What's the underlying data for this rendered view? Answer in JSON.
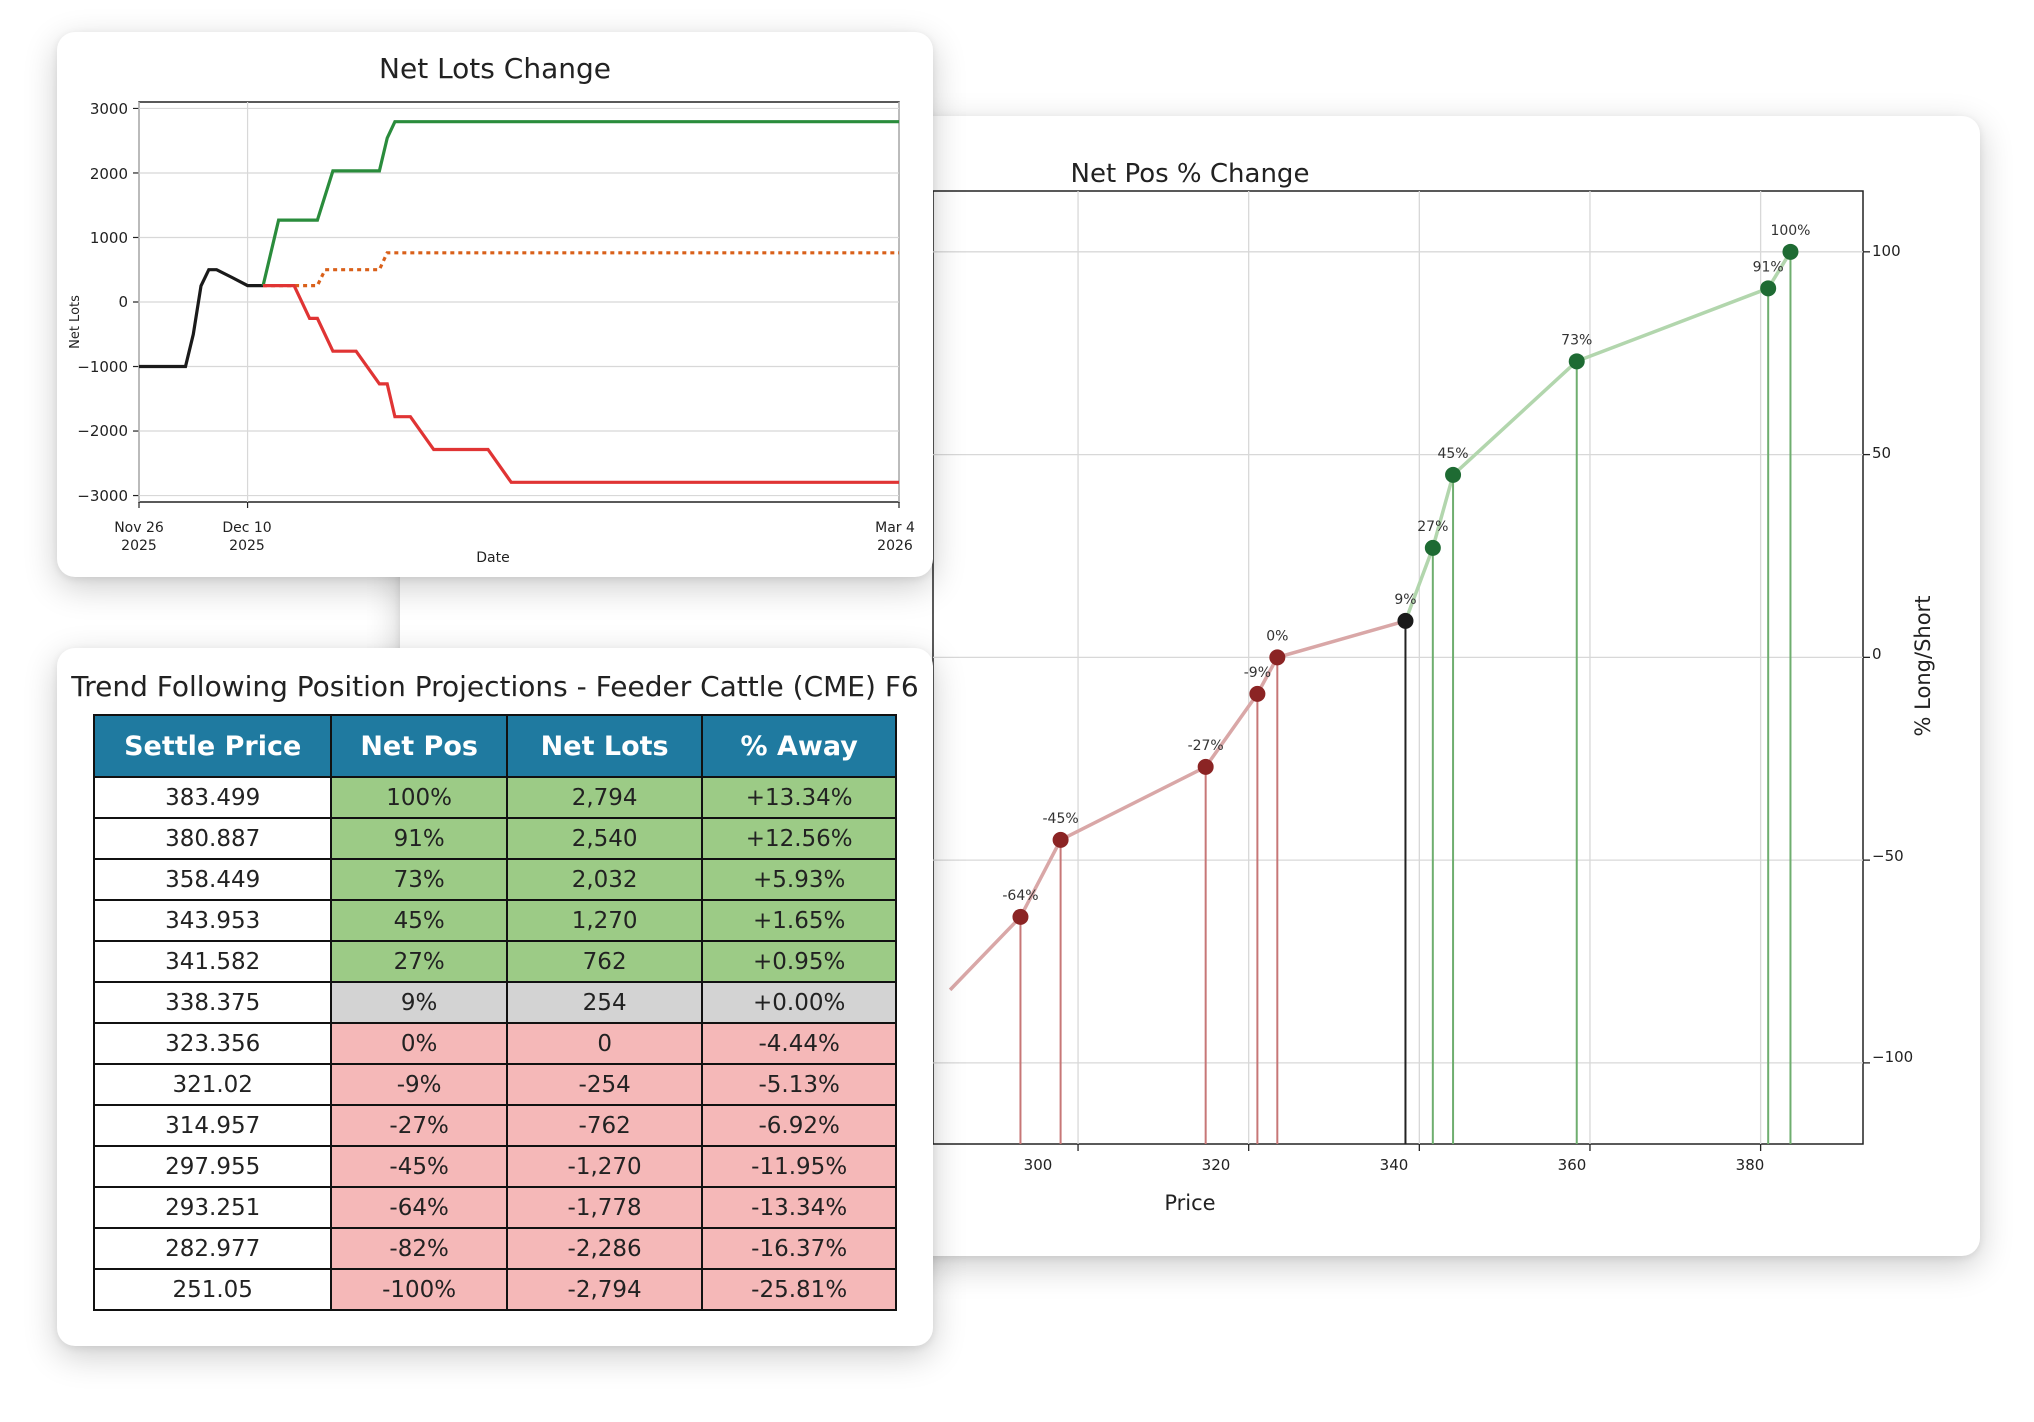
{
  "netpos_chart": {
    "title": "Net Pos % Change",
    "xlabel": "Price",
    "ylabel": "% Long/Short",
    "x_ticks": [
      "300",
      "320",
      "340",
      "360",
      "380"
    ],
    "y_ticks": [
      "100",
      "50",
      "0",
      "−50",
      "−100"
    ]
  },
  "netlots_chart": {
    "title": "Net Lots Change",
    "xlabel": "Date",
    "ylabel": "Net Lots",
    "x_ticks": [
      {
        "line1": "Nov 26",
        "line2": "2025"
      },
      {
        "line1": "Dec 10",
        "line2": "2025"
      },
      {
        "line1": "Mar 4",
        "line2": "2026"
      }
    ],
    "y_ticks": [
      "3000",
      "2000",
      "1000",
      "0",
      "−1000",
      "−2000",
      "−3000"
    ]
  },
  "table": {
    "title": "Trend Following Position Projections - Feeder Cattle (CME) F6",
    "headers": [
      "Settle Price",
      "Net Pos",
      "Net Lots",
      "% Away"
    ],
    "rows": [
      {
        "price": "383.499",
        "pos": "100%",
        "lots": "2,794",
        "away": "+13.34%",
        "tone": "pos"
      },
      {
        "price": "380.887",
        "pos": "91%",
        "lots": "2,540",
        "away": "+12.56%",
        "tone": "pos"
      },
      {
        "price": "358.449",
        "pos": "73%",
        "lots": "2,032",
        "away": "+5.93%",
        "tone": "pos"
      },
      {
        "price": "343.953",
        "pos": "45%",
        "lots": "1,270",
        "away": "+1.65%",
        "tone": "pos"
      },
      {
        "price": "341.582",
        "pos": "27%",
        "lots": "762",
        "away": "+0.95%",
        "tone": "pos"
      },
      {
        "price": "338.375",
        "pos": "9%",
        "lots": "254",
        "away": "+0.00%",
        "tone": "neu"
      },
      {
        "price": "323.356",
        "pos": "0%",
        "lots": "0",
        "away": "-4.44%",
        "tone": "neg"
      },
      {
        "price": "321.02",
        "pos": "-9%",
        "lots": "-254",
        "away": "-5.13%",
        "tone": "neg"
      },
      {
        "price": "314.957",
        "pos": "-27%",
        "lots": "-762",
        "away": "-6.92%",
        "tone": "neg"
      },
      {
        "price": "297.955",
        "pos": "-45%",
        "lots": "-1,270",
        "away": "-11.95%",
        "tone": "neg"
      },
      {
        "price": "293.251",
        "pos": "-64%",
        "lots": "-1,778",
        "away": "-13.34%",
        "tone": "neg"
      },
      {
        "price": "282.977",
        "pos": "-82%",
        "lots": "-2,286",
        "away": "-16.37%",
        "tone": "neg"
      },
      {
        "price": "251.05",
        "pos": "-100%",
        "lots": "-2,794",
        "away": "-25.81%",
        "tone": "neg"
      }
    ]
  },
  "colors": {
    "long": "#1e6b33",
    "short": "#8b2424",
    "current": "#1a1a1a",
    "up_line": "#2a8c3c",
    "down_line": "#e03434",
    "flat_line": "#d9601a",
    "header": "#1f7aa0"
  },
  "chart_data": [
    {
      "type": "line",
      "title": "Net Pos % Change",
      "xlabel": "Price",
      "ylabel": "% Long/Short",
      "xlim": [
        283,
        392
      ],
      "ylim": [
        -120,
        115
      ],
      "grid": true,
      "points": [
        {
          "x": 297.955,
          "y": -45,
          "label": "-45%",
          "side": "short"
        },
        {
          "x": 293.251,
          "y": -64,
          "label": "-64%",
          "side": "short"
        },
        {
          "x": 314.957,
          "y": -27,
          "label": "-27%",
          "side": "short"
        },
        {
          "x": 321.02,
          "y": -9,
          "label": "-9%",
          "side": "short"
        },
        {
          "x": 323.356,
          "y": 0,
          "label": "0%",
          "side": "short"
        },
        {
          "x": 338.375,
          "y": 9,
          "label": "9%",
          "side": "current"
        },
        {
          "x": 341.582,
          "y": 27,
          "label": "27%",
          "side": "long"
        },
        {
          "x": 343.953,
          "y": 45,
          "label": "45%",
          "side": "long"
        },
        {
          "x": 358.449,
          "y": 73,
          "label": "73%",
          "side": "long"
        },
        {
          "x": 380.887,
          "y": 91,
          "label": "91%",
          "side": "long"
        },
        {
          "x": 383.499,
          "y": 100,
          "label": "100%",
          "side": "long"
        }
      ]
    },
    {
      "type": "line",
      "title": "Net Lots Change",
      "xlabel": "Date",
      "ylabel": "Net Lots",
      "ylim": [
        -3100,
        3100
      ],
      "grid": true,
      "note_x_units": "days from Nov 26 2025",
      "series": [
        {
          "role": "history",
          "points": [
            [
              0,
              -1000
            ],
            [
              6,
              -1000
            ],
            [
              7,
              -500
            ],
            [
              8,
              250
            ],
            [
              9,
              500
            ],
            [
              10,
              500
            ],
            [
              12,
              380
            ],
            [
              14,
              254
            ],
            [
              16,
              254
            ]
          ]
        },
        {
          "role": "up",
          "points": [
            [
              16,
              254
            ],
            [
              18,
              1270
            ],
            [
              23,
              1270
            ],
            [
              25,
              2032
            ],
            [
              31,
              2032
            ],
            [
              32,
              2540
            ],
            [
              33,
              2794
            ],
            [
              98,
              2794
            ]
          ]
        },
        {
          "role": "flat",
          "points": [
            [
              16,
              254
            ],
            [
              23,
              254
            ],
            [
              24,
              500
            ],
            [
              31,
              500
            ],
            [
              32,
              762
            ],
            [
              98,
              762
            ]
          ]
        },
        {
          "role": "down",
          "points": [
            [
              16,
              254
            ],
            [
              20,
              254
            ],
            [
              22,
              -254
            ],
            [
              23,
              -254
            ],
            [
              25,
              -762
            ],
            [
              28,
              -762
            ],
            [
              31,
              -1270
            ],
            [
              32,
              -1270
            ],
            [
              33,
              -1778
            ],
            [
              35,
              -1778
            ],
            [
              38,
              -2286
            ],
            [
              45,
              -2286
            ],
            [
              48,
              -2794
            ],
            [
              98,
              -2794
            ]
          ]
        }
      ]
    }
  ]
}
